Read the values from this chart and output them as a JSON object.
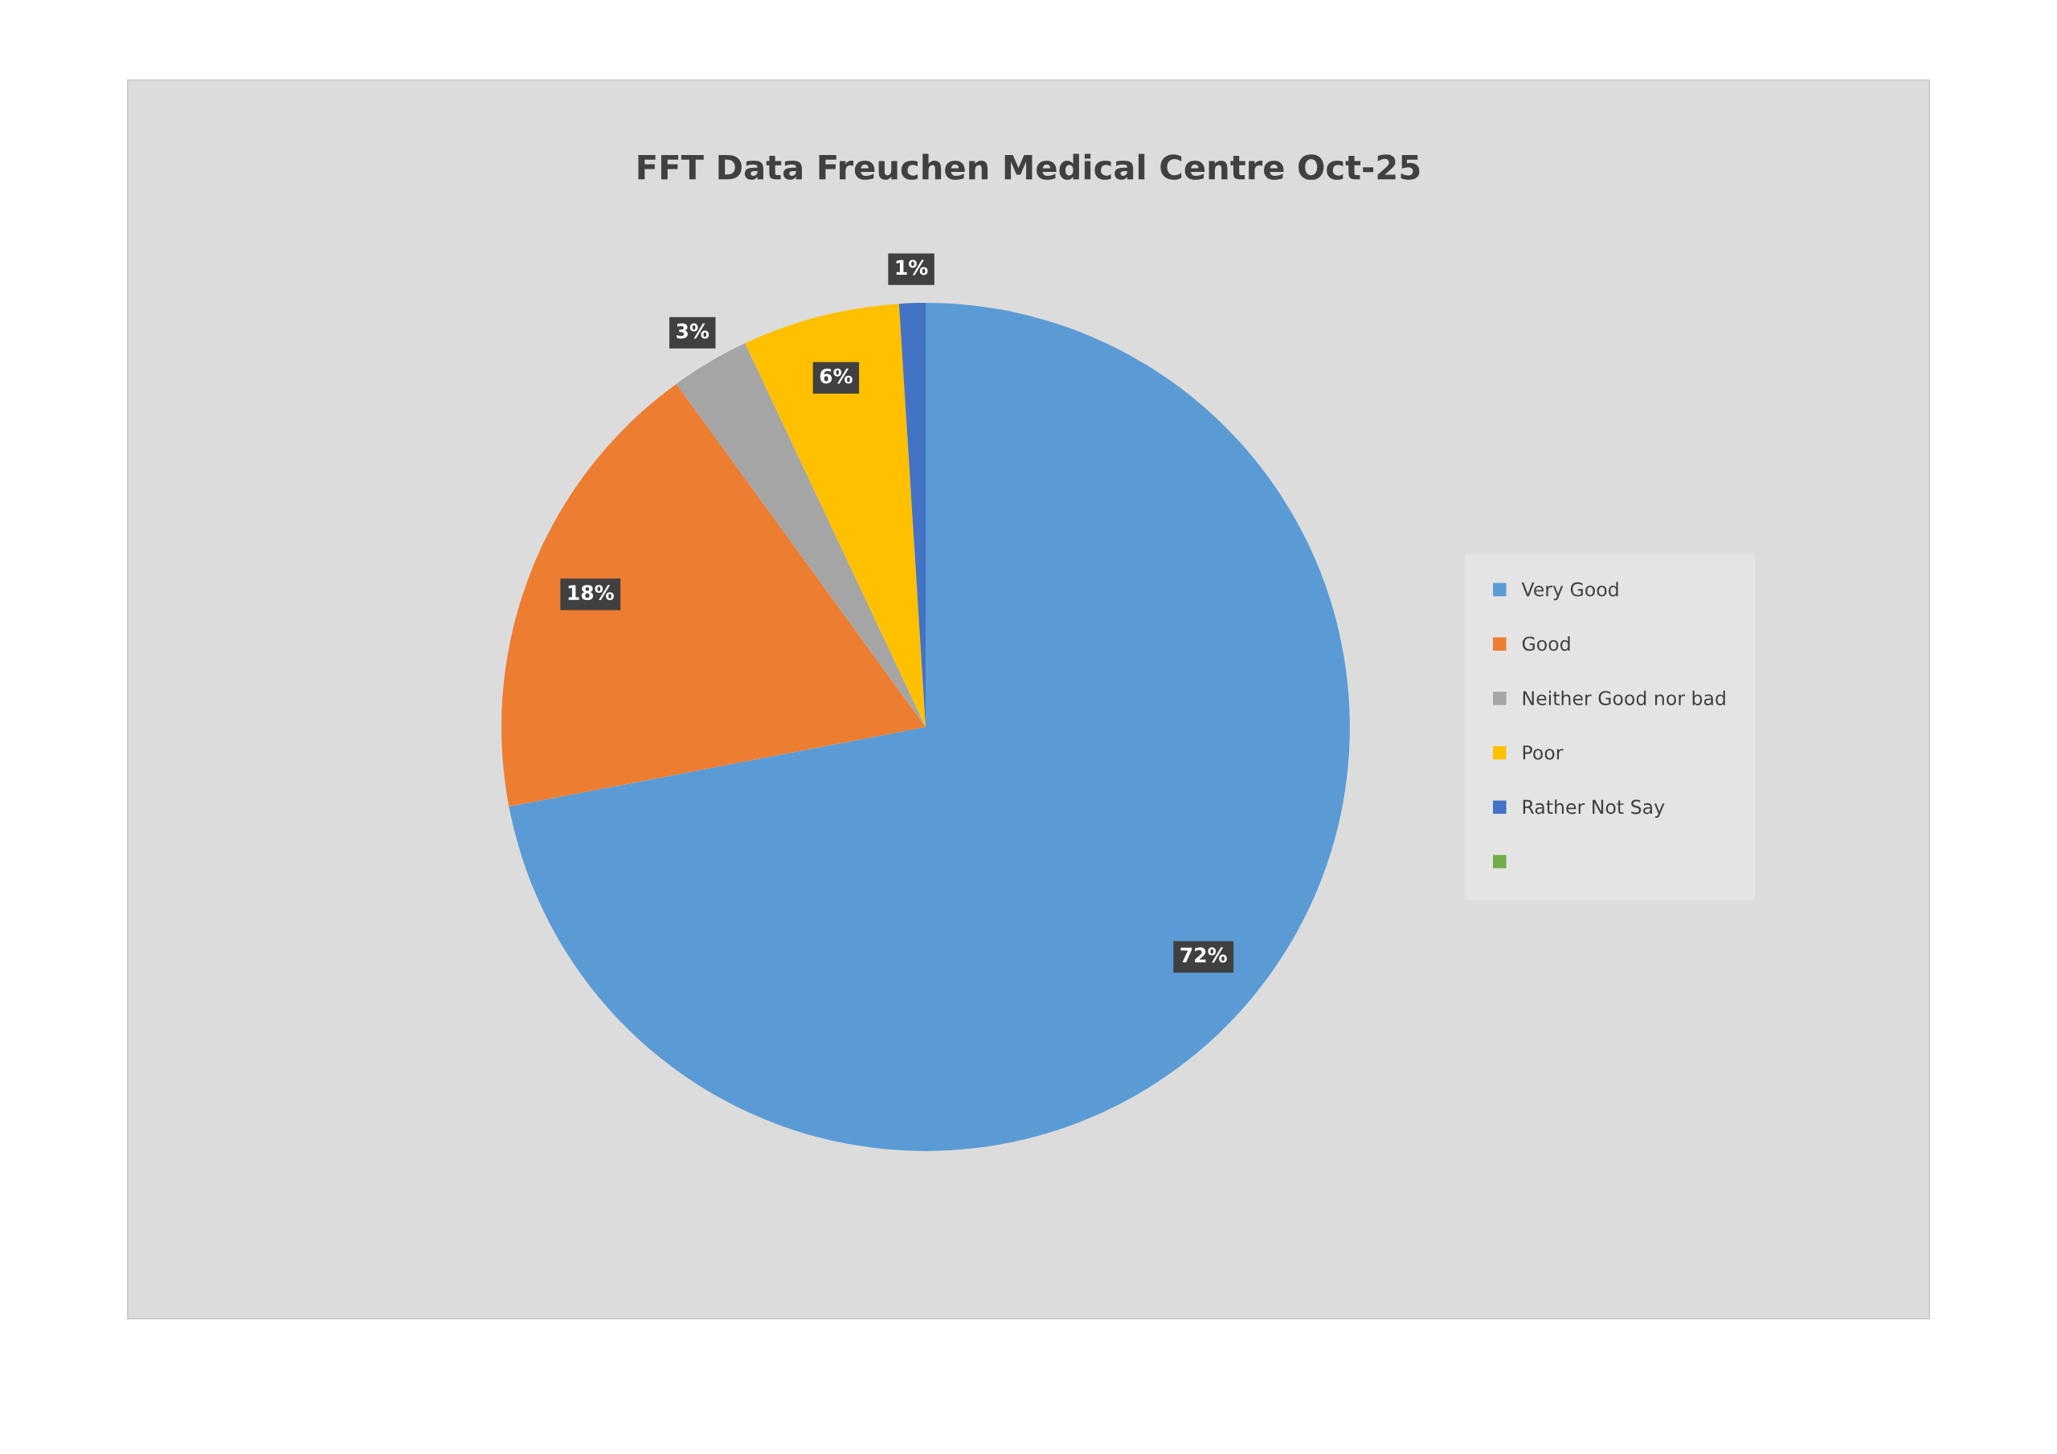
{
  "chart_data": {
    "type": "pie",
    "title": "FFT Data Freuchen Medical Centre Oct-25",
    "categories": [
      "Very Good",
      "Good",
      "Neither Good nor bad",
      "Poor",
      "Rather Not Say",
      null
    ],
    "values": [
      72,
      18,
      3,
      6,
      1,
      0
    ],
    "colors": [
      "#5b9bd5",
      "#ed7d31",
      "#a5a5a5",
      "#ffc000",
      "#4472c4",
      "#70ad47"
    ],
    "value_labels": [
      "72%",
      "18%",
      "3%",
      "6%",
      "1%",
      null
    ],
    "legend": "right"
  }
}
